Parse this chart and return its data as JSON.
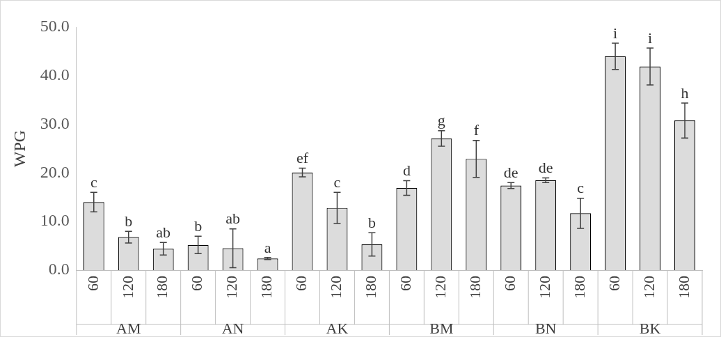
{
  "chart_data": {
    "type": "bar",
    "ylabel": "WPG",
    "categories": [
      "60",
      "120",
      "180",
      "60",
      "120",
      "180",
      "60",
      "120",
      "180",
      "60",
      "120",
      "180",
      "60",
      "120",
      "180",
      "60",
      "120",
      "180"
    ],
    "values": [
      14.0,
      6.8,
      4.4,
      5.2,
      4.5,
      2.4,
      20.1,
      12.8,
      5.3,
      16.9,
      27.1,
      22.9,
      17.4,
      18.5,
      11.7,
      44.0,
      41.9,
      30.8
    ],
    "errors": [
      2.0,
      1.2,
      1.3,
      1.8,
      4.0,
      0.2,
      0.9,
      3.2,
      2.4,
      1.5,
      1.6,
      3.8,
      0.6,
      0.5,
      3.1,
      2.7,
      3.8,
      3.6
    ],
    "value_labels": [
      "c",
      "b",
      "ab",
      "b",
      "ab",
      "a",
      "ef",
      "c",
      "b",
      "d",
      "g",
      "f",
      "de",
      "de",
      "c",
      "i",
      "i",
      "h"
    ],
    "annotations": [
      "AM",
      "AN",
      "AK",
      "BM",
      "BN",
      "BK"
    ],
    "color": "#dcdcdc",
    "ylim": [
      0,
      50
    ],
    "yticks": [
      {
        "value": 0,
        "label": "0.0"
      },
      {
        "value": 10,
        "label": "10.0"
      },
      {
        "value": 20,
        "label": "20.0"
      },
      {
        "value": 30,
        "label": "30.0"
      },
      {
        "value": 40,
        "label": "40.0"
      },
      {
        "value": 50,
        "label": "50.0"
      }
    ],
    "grid": false,
    "legend": false
  }
}
